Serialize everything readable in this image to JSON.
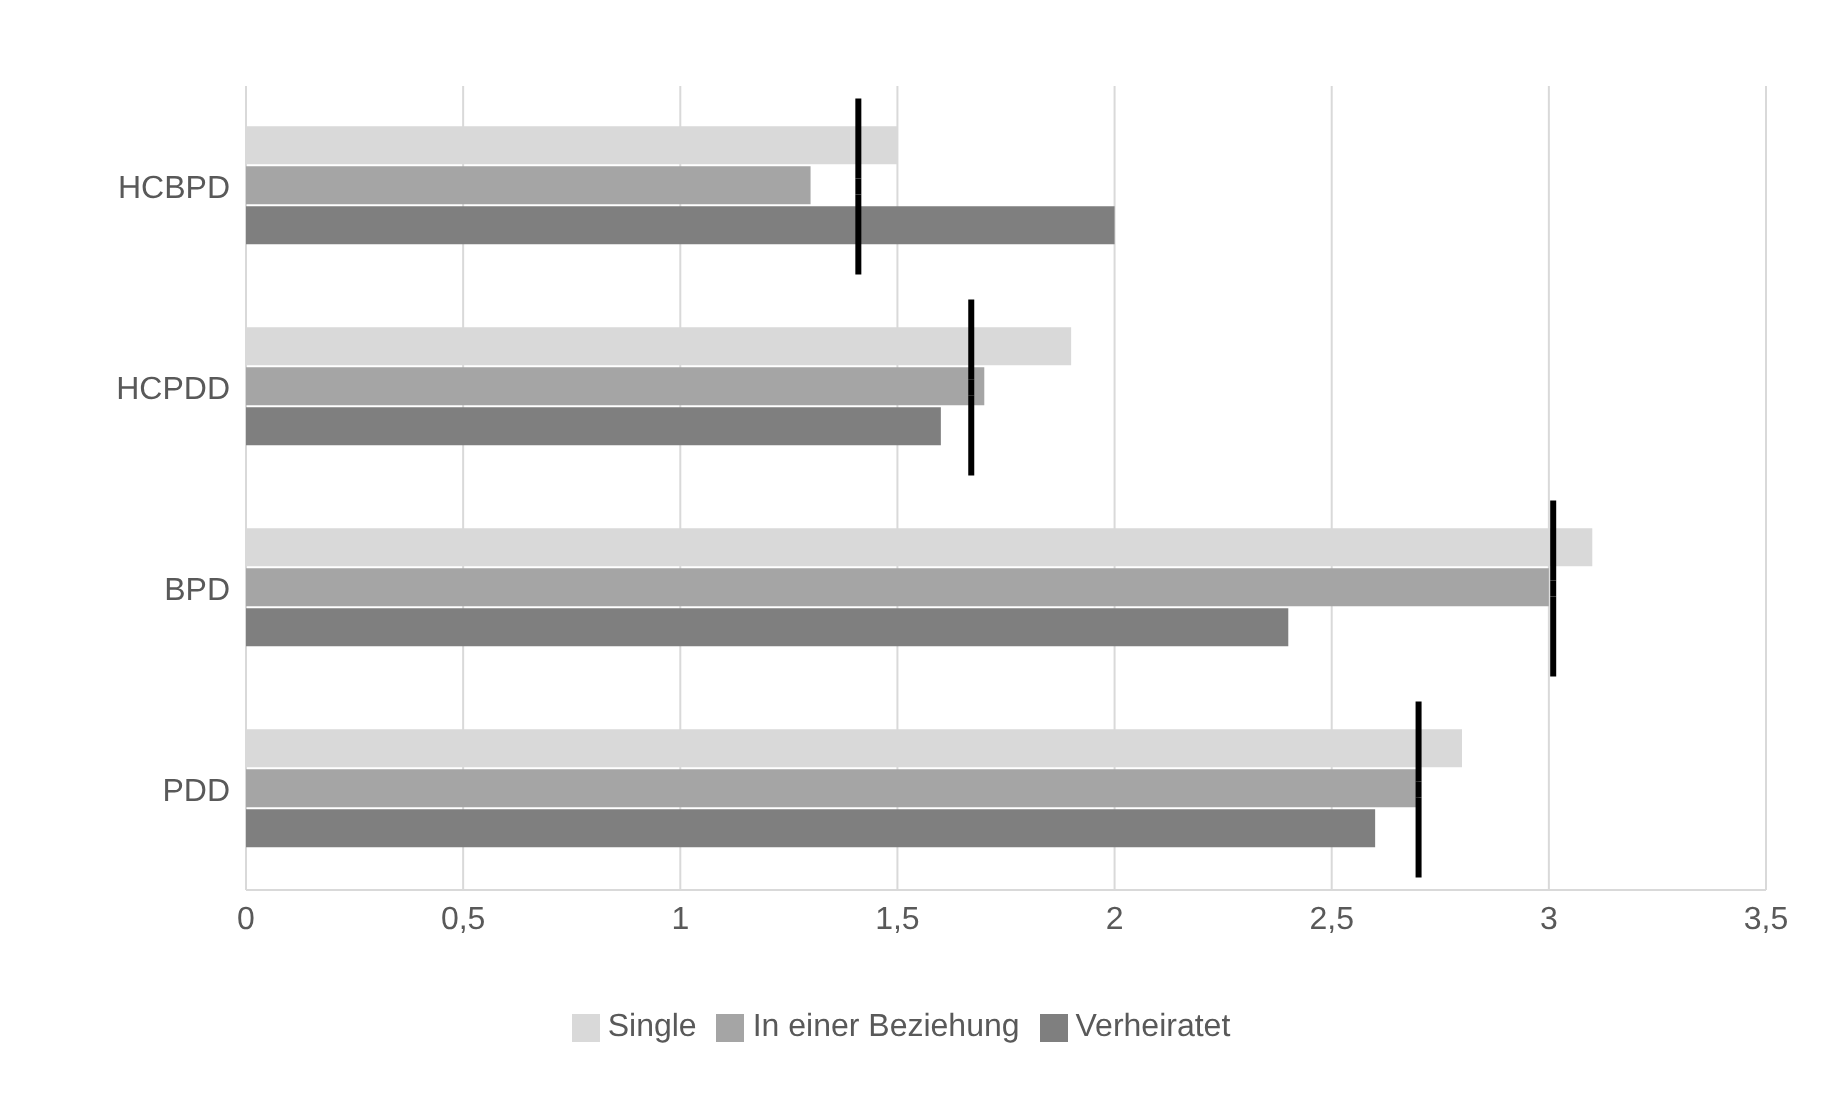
{
  "chart_data": {
    "type": "bar",
    "orientation": "horizontal",
    "categories": [
      "HCBPD",
      "HCPDD",
      "BPD",
      "PDD"
    ],
    "series": [
      {
        "name": "Single",
        "color": "#d9d9d9",
        "values": [
          1.5,
          1.9,
          3.1,
          2.8
        ]
      },
      {
        "name": "In einer Beziehung",
        "color": "#a5a5a5",
        "values": [
          1.3,
          1.7,
          3.0,
          2.7
        ]
      },
      {
        "name": "Verheiratet",
        "color": "#7f7f7f",
        "values": [
          2.0,
          1.6,
          2.4,
          2.6
        ]
      },
      {
        "type": "scatter",
        "color": "#000000",
        "values": [
          1.41,
          1.67,
          3.01,
          2.7
        ]
      }
    ],
    "xlim": [
      0,
      3.5
    ],
    "xticks": [
      0,
      {
        "value": 0.5,
        "label": "0,5"
      },
      1,
      {
        "value": 1.5,
        "label": "1,5"
      },
      2,
      {
        "value": 2.5,
        "label": "2,5"
      },
      3,
      {
        "value": 3.5,
        "label": "3,5"
      }
    ],
    "grid": "x",
    "legend": "bottom"
  }
}
